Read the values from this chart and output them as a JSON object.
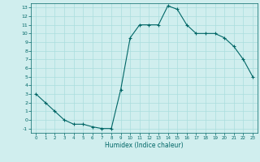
{
  "title": "",
  "xlabel": "Humidex (Indice chaleur)",
  "x": [
    0,
    1,
    2,
    3,
    4,
    5,
    6,
    7,
    8,
    9,
    10,
    11,
    12,
    13,
    14,
    15,
    16,
    17,
    18,
    19,
    20,
    21,
    22,
    23
  ],
  "y": [
    3,
    2,
    1,
    0,
    -0.5,
    -0.5,
    -0.8,
    -1,
    -1,
    3.5,
    9.5,
    11,
    11,
    11,
    13.2,
    12.8,
    11,
    10,
    10,
    10,
    9.5,
    8.5,
    7,
    5
  ],
  "ylim": [
    -1.5,
    13.5
  ],
  "xlim": [
    -0.5,
    23.5
  ],
  "yticks": [
    -1,
    0,
    1,
    2,
    3,
    4,
    5,
    6,
    7,
    8,
    9,
    10,
    11,
    12,
    13
  ],
  "xticks": [
    0,
    1,
    2,
    3,
    4,
    5,
    6,
    7,
    8,
    9,
    10,
    11,
    12,
    13,
    14,
    15,
    16,
    17,
    18,
    19,
    20,
    21,
    22,
    23
  ],
  "line_color": "#006666",
  "bg_color": "#d0eeee",
  "grid_color": "#aadddd",
  "marker": "+",
  "marker_size": 3,
  "linewidth": 0.8
}
